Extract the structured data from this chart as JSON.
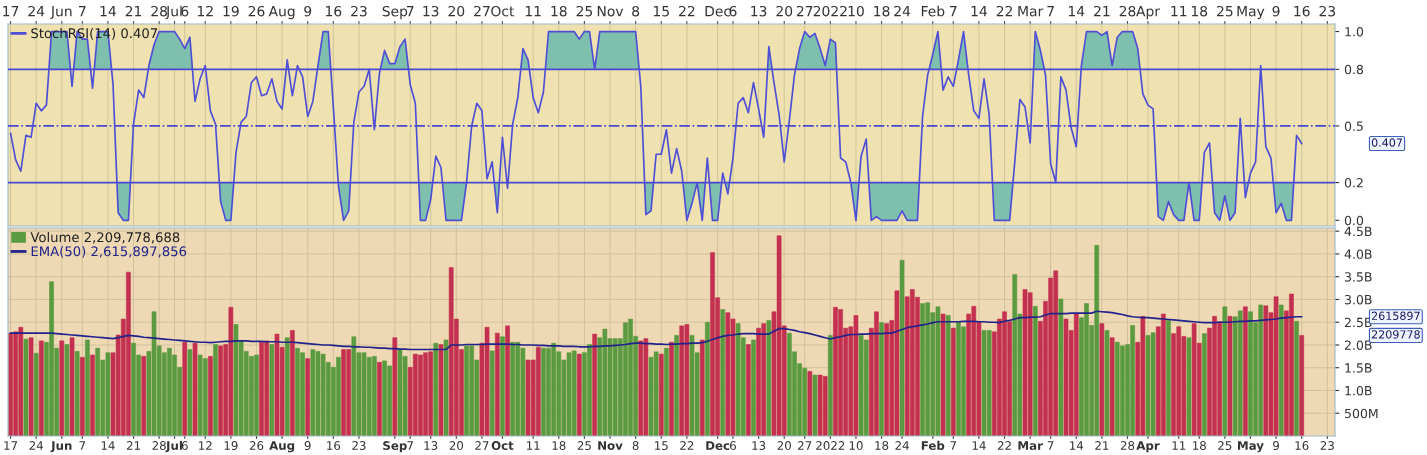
{
  "chart_data": [
    {
      "type": "line",
      "categories": [
        "17",
        null,
        null,
        null,
        null,
        "24",
        null,
        null,
        null,
        null,
        "Jun",
        null,
        null,
        null,
        "7",
        null,
        null,
        null,
        null,
        "14",
        null,
        null,
        null,
        null,
        "21",
        null,
        null,
        null,
        null,
        "28",
        null,
        null,
        "Jul",
        null,
        "6",
        null,
        null,
        null,
        "12",
        null,
        null,
        null,
        null,
        "19",
        null,
        null,
        null,
        null,
        "26",
        null,
        null,
        null,
        null,
        "Aug",
        null,
        null,
        null,
        null,
        "9",
        null,
        null,
        null,
        null,
        "16",
        null,
        null,
        null,
        null,
        "23",
        null,
        null,
        null,
        null,
        null,
        null,
        "Sep",
        null,
        null,
        "7",
        null,
        null,
        null,
        "13",
        null,
        null,
        null,
        null,
        "20",
        null,
        null,
        null,
        null,
        "27",
        null,
        null,
        null,
        "Oct",
        null,
        null,
        null,
        null,
        null,
        "11",
        null,
        null,
        null,
        null,
        "18",
        null,
        null,
        null,
        null,
        "25",
        null,
        null,
        null,
        null,
        "Nov",
        null,
        null,
        null,
        null,
        "8",
        null,
        null,
        null,
        null,
        "15",
        null,
        null,
        null,
        null,
        "22",
        null,
        null,
        null,
        null,
        null,
        "Dec",
        null,
        null,
        "6",
        null,
        null,
        null,
        null,
        "13",
        null,
        null,
        null,
        null,
        "20",
        null,
        null,
        null,
        "27",
        null,
        null,
        null,
        null,
        "2022",
        null,
        null,
        null,
        null,
        "10",
        null,
        null,
        null,
        null,
        "18",
        null,
        null,
        null,
        "24",
        null,
        null,
        null,
        null,
        null,
        "Feb",
        null,
        null,
        null,
        "7",
        null,
        null,
        null,
        null,
        "14",
        null,
        null,
        null,
        null,
        "22",
        null,
        null,
        null,
        null,
        "Mar",
        null,
        null,
        null,
        "7",
        null,
        null,
        null,
        null,
        "14",
        null,
        null,
        null,
        null,
        "21",
        null,
        null,
        null,
        null,
        "28",
        null,
        null,
        null,
        "Apr",
        null,
        null,
        null,
        null,
        null,
        "11",
        null,
        null,
        null,
        "18",
        null,
        null,
        null,
        null,
        "25",
        null,
        null,
        null,
        null,
        "May",
        null,
        null,
        null,
        null,
        "9",
        null,
        null,
        null,
        null,
        "16",
        null,
        null,
        null,
        null,
        "23",
        null
      ],
      "series": [
        {
          "name": "StochRSI(14) 0.407",
          "color": "#4f4fd6",
          "values": [
            0.46,
            0.32,
            0.26,
            0.45,
            0.44,
            0.62,
            0.58,
            0.61,
            1.0,
            1.0,
            1.0,
            1.0,
            0.71,
            1.0,
            0.96,
            0.96,
            0.7,
            1.0,
            1.0,
            1.0,
            0.72,
            0.04,
            0.0,
            0.0,
            0.51,
            0.69,
            0.65,
            0.82,
            0.93,
            1.0,
            1.0,
            1.0,
            1.0,
            0.96,
            0.91,
            0.97,
            0.63,
            0.75,
            0.82,
            0.58,
            0.51,
            0.1,
            0.0,
            0.0,
            0.36,
            0.52,
            0.55,
            0.73,
            0.76,
            0.66,
            0.67,
            0.75,
            0.63,
            0.59,
            0.85,
            0.66,
            0.82,
            0.76,
            0.55,
            0.63,
            0.82,
            1.0,
            1.0,
            0.6,
            0.18,
            0.0,
            0.05,
            0.52,
            0.68,
            0.71,
            0.8,
            0.48,
            0.78,
            0.9,
            0.83,
            0.83,
            0.92,
            0.96,
            0.72,
            0.62,
            0.0,
            0.0,
            0.11,
            0.34,
            0.28,
            0.0,
            0.0,
            0.0,
            0.0,
            0.2,
            0.5,
            0.62,
            0.58,
            0.22,
            0.31,
            0.04,
            0.44,
            0.17,
            0.51,
            0.65,
            0.91,
            0.85,
            0.65,
            0.57,
            0.68,
            1.0,
            1.0,
            1.0,
            1.0,
            1.0,
            1.0,
            0.96,
            1.0,
            1.0,
            0.8,
            1.0,
            1.0,
            1.0,
            1.0,
            1.0,
            1.0,
            1.0,
            1.0,
            0.71,
            0.03,
            0.05,
            0.35,
            0.35,
            0.48,
            0.25,
            0.38,
            0.26,
            0.0,
            0.09,
            0.2,
            0.0,
            0.33,
            0.0,
            0.0,
            0.25,
            0.14,
            0.33,
            0.62,
            0.65,
            0.57,
            0.73,
            0.59,
            0.44,
            0.92,
            0.73,
            0.56,
            0.31,
            0.53,
            0.77,
            0.91,
            1.0,
            0.97,
            0.99,
            0.91,
            0.82,
            0.96,
            0.94,
            0.33,
            0.31,
            0.2,
            0.0,
            0.34,
            0.43,
            0.0,
            0.02,
            0.0,
            0.0,
            0.0,
            0.0,
            0.05,
            0.0,
            0.0,
            0.0,
            0.55,
            0.77,
            0.88,
            1.0,
            0.69,
            0.76,
            0.71,
            0.85,
            1.0,
            0.77,
            0.58,
            0.54,
            0.75,
            0.56,
            0.0,
            0.0,
            0.0,
            0.0,
            0.31,
            0.64,
            0.6,
            0.41,
            1.0,
            0.9,
            0.77,
            0.3,
            0.2,
            0.76,
            0.69,
            0.49,
            0.39,
            0.82,
            1.0,
            1.0,
            1.0,
            0.98,
            1.0,
            0.82,
            0.97,
            1.0,
            1.0,
            1.0,
            0.91,
            0.67,
            0.61,
            0.59,
            0.02,
            0.0,
            0.1,
            0.03,
            0.0,
            0.0,
            0.2,
            0.0,
            0.0,
            0.36,
            0.41,
            0.04,
            0.0,
            0.13,
            0.0,
            0.04,
            0.54,
            0.12,
            0.25,
            0.31,
            0.82,
            0.39,
            0.33,
            0.04,
            0.09,
            0.0,
            0.0,
            0.45,
            0.407,
            null,
            null,
            null,
            null,
            null,
            null
          ]
        }
      ],
      "ylim": [
        -0.03,
        1.04
      ],
      "yticks": [
        {
          "value": 0,
          "label": "0.0"
        },
        0.2,
        0.5,
        0.8,
        {
          "value": 1,
          "label": "1.0"
        }
      ],
      "ref_lines": [
        {
          "axis": "y",
          "value": 0.8,
          "label": null,
          "color": "#4848d0",
          "line_style": "solid"
        },
        {
          "axis": "y",
          "value": 0.5,
          "label": null,
          "color": "#4848d0",
          "line_style": "dashed"
        },
        {
          "axis": "y",
          "value": 0.2,
          "label": null,
          "color": "#4848d0",
          "line_style": "solid"
        }
      ],
      "annotations": [
        "0.407"
      ],
      "grid": "x",
      "legend": "top left"
    },
    {
      "type": "bar",
      "categories": [
        "17",
        null,
        null,
        null,
        null,
        "24",
        null,
        null,
        null,
        null,
        "Jun",
        null,
        null,
        null,
        "7",
        null,
        null,
        null,
        null,
        "14",
        null,
        null,
        null,
        null,
        "21",
        null,
        null,
        null,
        null,
        "28",
        null,
        null,
        "Jul",
        null,
        "6",
        null,
        null,
        null,
        "12",
        null,
        null,
        null,
        null,
        "19",
        null,
        null,
        null,
        null,
        "26",
        null,
        null,
        null,
        null,
        "Aug",
        null,
        null,
        null,
        null,
        "9",
        null,
        null,
        null,
        null,
        "16",
        null,
        null,
        null,
        null,
        "23",
        null,
        null,
        null,
        null,
        null,
        null,
        "Sep",
        null,
        null,
        "7",
        null,
        null,
        null,
        "13",
        null,
        null,
        null,
        null,
        "20",
        null,
        null,
        null,
        null,
        "27",
        null,
        null,
        null,
        "Oct",
        null,
        null,
        null,
        null,
        null,
        "11",
        null,
        null,
        null,
        null,
        "18",
        null,
        null,
        null,
        null,
        "25",
        null,
        null,
        null,
        null,
        "Nov",
        null,
        null,
        null,
        null,
        "8",
        null,
        null,
        null,
        null,
        "15",
        null,
        null,
        null,
        null,
        "22",
        null,
        null,
        null,
        null,
        null,
        "Dec",
        null,
        null,
        "6",
        null,
        null,
        null,
        null,
        "13",
        null,
        null,
        null,
        null,
        "20",
        null,
        null,
        null,
        "27",
        null,
        null,
        null,
        null,
        "2022",
        null,
        null,
        null,
        null,
        "10",
        null,
        null,
        null,
        null,
        "18",
        null,
        null,
        null,
        "24",
        null,
        null,
        null,
        null,
        null,
        "Feb",
        null,
        null,
        null,
        "7",
        null,
        null,
        null,
        null,
        "14",
        null,
        null,
        null,
        null,
        "22",
        null,
        null,
        null,
        null,
        "Mar",
        null,
        null,
        null,
        "7",
        null,
        null,
        null,
        null,
        "14",
        null,
        null,
        null,
        null,
        "21",
        null,
        null,
        null,
        null,
        "28",
        null,
        null,
        null,
        "Apr",
        null,
        null,
        null,
        null,
        null,
        "11",
        null,
        null,
        null,
        "18",
        null,
        null,
        null,
        null,
        "25",
        null,
        null,
        null,
        null,
        "May",
        null,
        null,
        null,
        null,
        "9",
        null,
        null,
        null,
        null,
        "16",
        null,
        null,
        null,
        null,
        "23",
        null
      ],
      "series": [
        {
          "name": "Volume 2,209,778,688",
          "type": "bar",
          "color": "#5a9a40",
          "values": [
            2260000000.0,
            2290000000.0,
            2390000000.0,
            2130000000.0,
            2160000000.0,
            1820000000.0,
            2090000000.0,
            2060000000.0,
            3390000000.0,
            1930000000.0,
            2090000000.0,
            2010000000.0,
            2160000000.0,
            1860000000.0,
            1730000000.0,
            2110000000.0,
            1780000000.0,
            1930000000.0,
            1670000000.0,
            1830000000.0,
            1830000000.0,
            2220000000.0,
            2570000000.0,
            3600000000.0,
            2040000000.0,
            1780000000.0,
            1750000000.0,
            1860000000.0,
            2730000000.0,
            1980000000.0,
            1830000000.0,
            1930000000.0,
            1780000000.0,
            1510000000.0,
            2060000000.0,
            1900000000.0,
            2040000000.0,
            1780000000.0,
            1700000000.0,
            1750000000.0,
            2010000000.0,
            1980000000.0,
            2010000000.0,
            2830000000.0,
            2450000000.0,
            2090000000.0,
            1860000000.0,
            1750000000.0,
            1780000000.0,
            2060000000.0,
            2090000000.0,
            2010000000.0,
            2240000000.0,
            1950000000.0,
            2160000000.0,
            2320000000.0,
            1930000000.0,
            1830000000.0,
            1700000000.0,
            1900000000.0,
            1860000000.0,
            1800000000.0,
            1620000000.0,
            1510000000.0,
            1730000000.0,
            1900000000.0,
            1900000000.0,
            2180000000.0,
            1830000000.0,
            1830000000.0,
            1730000000.0,
            1750000000.0,
            1620000000.0,
            1650000000.0,
            1540000000.0,
            2160000000.0,
            1900000000.0,
            1750000000.0,
            1510000000.0,
            1800000000.0,
            1780000000.0,
            1830000000.0,
            1850000000.0,
            2040000000.0,
            2010000000.0,
            2110000000.0,
            3700000000.0,
            2570000000.0,
            1900000000.0,
            1980000000.0,
            1980000000.0,
            1670000000.0,
            2040000000.0,
            2390000000.0,
            1870000000.0,
            2260000000.0,
            2180000000.0,
            2420000000.0,
            2060000000.0,
            2060000000.0,
            1930000000.0,
            1670000000.0,
            1670000000.0,
            1950000000.0,
            1930000000.0,
            1930000000.0,
            2040000000.0,
            1850000000.0,
            1670000000.0,
            1830000000.0,
            1870000000.0,
            1800000000.0,
            1830000000.0,
            2010000000.0,
            2240000000.0,
            2160000000.0,
            2350000000.0,
            2140000000.0,
            2140000000.0,
            2140000000.0,
            2490000000.0,
            2570000000.0,
            2190000000.0,
            2090000000.0,
            2140000000.0,
            1730000000.0,
            1850000000.0,
            1800000000.0,
            1930000000.0,
            2060000000.0,
            2210000000.0,
            2420000000.0,
            2450000000.0,
            2210000000.0,
            1830000000.0,
            2110000000.0,
            2500000000.0,
            4030000000.0,
            3040000000.0,
            2780000000.0,
            2710000000.0,
            2570000000.0,
            2470000000.0,
            2160000000.0,
            2010000000.0,
            2110000000.0,
            2370000000.0,
            2470000000.0,
            2540000000.0,
            2730000000.0,
            4400000000.0,
            2420000000.0,
            2260000000.0,
            1850000000.0,
            1590000000.0,
            1490000000.0,
            1420000000.0,
            1340000000.0,
            1340000000.0,
            1310000000.0,
            2210000000.0,
            2830000000.0,
            2780000000.0,
            2370000000.0,
            2400000000.0,
            2650000000.0,
            2210000000.0,
            2110000000.0,
            2370000000.0,
            2730000000.0,
            2490000000.0,
            2470000000.0,
            2540000000.0,
            3190000000.0,
            3860000000.0,
            3060000000.0,
            3220000000.0,
            3050000000.0,
            2910000000.0,
            2930000000.0,
            2710000000.0,
            2840000000.0,
            2680000000.0,
            2650000000.0,
            2370000000.0,
            2510000000.0,
            2400000000.0,
            2680000000.0,
            2850000000.0,
            2510000000.0,
            2320000000.0,
            2320000000.0,
            2290000000.0,
            2570000000.0,
            2730000000.0,
            2510000000.0,
            3550000000.0,
            2680000000.0,
            3220000000.0,
            3150000000.0,
            2850000000.0,
            2520000000.0,
            2960000000.0,
            3470000000.0,
            3630000000.0,
            3010000000.0,
            2570000000.0,
            2320000000.0,
            2690000000.0,
            2600000000.0,
            2910000000.0,
            2430000000.0,
            4190000000.0,
            2470000000.0,
            2320000000.0,
            2160000000.0,
            2060000000.0,
            1980000000.0,
            2010000000.0,
            2430000000.0,
            2060000000.0,
            2630000000.0,
            2210000000.0,
            2270000000.0,
            2400000000.0,
            2680000000.0,
            2540000000.0,
            2250000000.0,
            2400000000.0,
            2190000000.0,
            2160000000.0,
            2470000000.0,
            2040000000.0,
            2250000000.0,
            2370000000.0,
            2630000000.0,
            2510000000.0,
            2840000000.0,
            2630000000.0,
            2620000000.0,
            2750000000.0,
            2840000000.0,
            2730000000.0,
            2490000000.0,
            2880000000.0,
            2860000000.0,
            2710000000.0,
            3060000000.0,
            2880000000.0,
            2750000000.0,
            3120000000.0,
            2520000000.0,
            2210000000.0,
            null,
            null,
            null,
            null,
            null,
            null
          ],
          "colors": [
            "#c4304f",
            "#c4304f",
            "#c4304f",
            "#5a9a40",
            "#c4304f",
            "#5a9a40",
            "#c4304f",
            "#5a9a40",
            "#5a9a40",
            "#5a9a40",
            "#c4304f",
            "#5a9a40",
            "#c4304f",
            "#5a9a40",
            "#c4304f",
            "#5a9a40",
            "#c4304f",
            "#5a9a40",
            "#5a9a40",
            "#5a9a40",
            "#c4304f",
            "#c4304f",
            "#c4304f",
            "#c4304f",
            "#5a9a40",
            "#5a9a40",
            "#c4304f",
            "#5a9a40",
            "#5a9a40",
            "#5a9a40",
            "#5a9a40",
            "#5a9a40",
            "#5a9a40",
            "#5a9a40",
            "#c4304f",
            "#5a9a40",
            "#c4304f",
            "#5a9a40",
            "#5a9a40",
            "#c4304f",
            "#5a9a40",
            "#c4304f",
            "#c4304f",
            "#c4304f",
            "#5a9a40",
            "#5a9a40",
            "#5a9a40",
            "#5a9a40",
            "#5a9a40",
            "#c4304f",
            "#c4304f",
            "#5a9a40",
            "#c4304f",
            "#c4304f",
            "#5a9a40",
            "#c4304f",
            "#5a9a40",
            "#5a9a40",
            "#c4304f",
            "#5a9a40",
            "#5a9a40",
            "#5a9a40",
            "#5a9a40",
            "#5a9a40",
            "#5a9a40",
            "#c4304f",
            "#c4304f",
            "#5a9a40",
            "#5a9a40",
            "#5a9a40",
            "#5a9a40",
            "#5a9a40",
            "#c4304f",
            "#5a9a40",
            "#5a9a40",
            "#c4304f",
            "#5a9a40",
            "#5a9a40",
            "#c4304f",
            "#c4304f",
            "#c4304f",
            "#c4304f",
            "#c4304f",
            "#5a9a40",
            "#c4304f",
            "#5a9a40",
            "#c4304f",
            "#c4304f",
            "#c4304f",
            "#5a9a40",
            "#5a9a40",
            "#5a9a40",
            "#c4304f",
            "#c4304f",
            "#5a9a40",
            "#c4304f",
            "#5a9a40",
            "#c4304f",
            "#5a9a40",
            "#5a9a40",
            "#5a9a40",
            "#c4304f",
            "#c4304f",
            "#c4304f",
            "#5a9a40",
            "#5a9a40",
            "#5a9a40",
            "#5a9a40",
            "#5a9a40",
            "#5a9a40",
            "#5a9a40",
            "#c4304f",
            "#5a9a40",
            "#5a9a40",
            "#c4304f",
            "#5a9a40",
            "#5a9a40",
            "#5a9a40",
            "#5a9a40",
            "#5a9a40",
            "#5a9a40",
            "#5a9a40",
            "#5a9a40",
            "#c4304f",
            "#c4304f",
            "#5a9a40",
            "#5a9a40",
            "#c4304f",
            "#5a9a40",
            "#c4304f",
            "#5a9a40",
            "#c4304f",
            "#c4304f",
            "#5a9a40",
            "#5a9a40",
            "#c4304f",
            "#5a9a40",
            "#c4304f",
            "#c4304f",
            "#5a9a40",
            "#c4304f",
            "#c4304f",
            "#5a9a40",
            "#5a9a40",
            "#c4304f",
            "#5a9a40",
            "#c4304f",
            "#c4304f",
            "#5a9a40",
            "#c4304f",
            "#c4304f",
            "#c4304f",
            "#5a9a40",
            "#5a9a40",
            "#5a9a40",
            "#5a9a40",
            "#c4304f",
            "#5a9a40",
            "#c4304f",
            "#c4304f",
            "#5a9a40",
            "#c4304f",
            "#c4304f",
            "#c4304f",
            "#c4304f",
            "#c4304f",
            "#5a9a40",
            "#5a9a40",
            "#c4304f",
            "#c4304f",
            "#5a9a40",
            "#c4304f",
            "#c4304f",
            "#c4304f",
            "#5a9a40",
            "#c4304f",
            "#c4304f",
            "#c4304f",
            "#5a9a40",
            "#5a9a40",
            "#5a9a40",
            "#5a9a40",
            "#c4304f",
            "#5a9a40",
            "#c4304f",
            "#5a9a40",
            "#5a9a40",
            "#c4304f",
            "#c4304f",
            "#c4304f",
            "#5a9a40",
            "#5a9a40",
            "#c4304f",
            "#c4304f",
            "#c4304f",
            "#c4304f",
            "#5a9a40",
            "#5a9a40",
            "#c4304f",
            "#c4304f",
            "#5a9a40",
            "#c4304f",
            "#c4304f",
            "#c4304f",
            "#c4304f",
            "#5a9a40",
            "#c4304f",
            "#c4304f",
            "#c4304f",
            "#5a9a40",
            "#5a9a40",
            "#5a9a40",
            "#5a9a40",
            "#c4304f",
            "#5a9a40",
            "#c4304f",
            "#5a9a40",
            "#5a9a40",
            "#5a9a40",
            "#5a9a40",
            "#c4304f",
            "#c4304f",
            "#5a9a40",
            "#5a9a40",
            "#c4304f",
            "#c4304f",
            "#5a9a40",
            "#c4304f",
            "#c4304f",
            "#c4304f",
            "#5a9a40",
            "#c4304f",
            "#c4304f",
            "#5a9a40",
            "#c4304f",
            "#c4304f",
            "#c4304f",
            "#5a9a40",
            "#c4304f",
            "#5a9a40",
            "#5a9a40",
            "#c4304f",
            "#5a9a40",
            "#5a9a40",
            "#5a9a40",
            "#c4304f",
            "#c4304f",
            "#c4304f",
            "#5a9a40",
            "#c4304f",
            "#c4304f",
            "#5a9a40",
            "#c4304f",
            null,
            null,
            null,
            null,
            null,
            null
          ]
        },
        {
          "name": "EMA(50) 2,615,897,856",
          "type": "line",
          "color": "#22228c",
          "values": [
            2260000000.0,
            2260000000.0,
            2260000000.0,
            2260000000.0,
            2260000000.0,
            2260000000.0,
            2260000000.0,
            2260000000.0,
            2260000000.0,
            2250000000.0,
            2240000000.0,
            2230000000.0,
            2220000000.0,
            2210000000.0,
            2200000000.0,
            2190000000.0,
            2180000000.0,
            2170000000.0,
            2160000000.0,
            2150000000.0,
            2140000000.0,
            2160000000.0,
            2190000000.0,
            2210000000.0,
            2200000000.0,
            2190000000.0,
            2170000000.0,
            2160000000.0,
            2150000000.0,
            2140000000.0,
            2130000000.0,
            2120000000.0,
            2110000000.0,
            2100000000.0,
            2090000000.0,
            2080000000.0,
            2070000000.0,
            2060000000.0,
            2060000000.0,
            2050000000.0,
            2060000000.0,
            2070000000.0,
            2080000000.0,
            2080000000.0,
            2090000000.0,
            2090000000.0,
            2090000000.0,
            2080000000.0,
            2080000000.0,
            2080000000.0,
            2070000000.0,
            2070000000.0,
            2070000000.0,
            2060000000.0,
            2060000000.0,
            2060000000.0,
            2050000000.0,
            2040000000.0,
            2030000000.0,
            2020000000.0,
            2010000000.0,
            2000000000.0,
            2000000000.0,
            1990000000.0,
            1980000000.0,
            1970000000.0,
            1970000000.0,
            1960000000.0,
            1960000000.0,
            1950000000.0,
            1950000000.0,
            1940000000.0,
            1930000000.0,
            1930000000.0,
            1920000000.0,
            1920000000.0,
            1910000000.0,
            1910000000.0,
            1900000000.0,
            1900000000.0,
            1900000000.0,
            1900000000.0,
            1900000000.0,
            1900000000.0,
            1900000000.0,
            1900000000.0,
            2000000000.0,
            2000000000.0,
            2000000000.0,
            2010000000.0,
            2010000000.0,
            2010000000.0,
            2010000000.0,
            2020000000.0,
            2020000000.0,
            2020000000.0,
            2020000000.0,
            2020000000.0,
            2010000000.0,
            2010000000.0,
            2000000000.0,
            2000000000.0,
            2000000000.0,
            1990000000.0,
            1990000000.0,
            1980000000.0,
            1980000000.0,
            1980000000.0,
            1970000000.0,
            1970000000.0,
            1970000000.0,
            1960000000.0,
            1960000000.0,
            1960000000.0,
            1970000000.0,
            1970000000.0,
            1980000000.0,
            1980000000.0,
            1990000000.0,
            2000000000.0,
            2010000000.0,
            2030000000.0,
            2040000000.0,
            2040000000.0,
            2030000000.0,
            2030000000.0,
            2020000000.0,
            2020000000.0,
            2010000000.0,
            2020000000.0,
            2020000000.0,
            2030000000.0,
            2030000000.0,
            2040000000.0,
            2040000000.0,
            2050000000.0,
            2080000000.0,
            2120000000.0,
            2160000000.0,
            2190000000.0,
            2210000000.0,
            2220000000.0,
            2240000000.0,
            2250000000.0,
            2250000000.0,
            2250000000.0,
            2240000000.0,
            2240000000.0,
            2240000000.0,
            2300000000.0,
            2360000000.0,
            2360000000.0,
            2340000000.0,
            2320000000.0,
            2290000000.0,
            2270000000.0,
            2250000000.0,
            2220000000.0,
            2190000000.0,
            2160000000.0,
            2130000000.0,
            2160000000.0,
            2180000000.0,
            2210000000.0,
            2230000000.0,
            2230000000.0,
            2240000000.0,
            2240000000.0,
            2250000000.0,
            2250000000.0,
            2250000000.0,
            2260000000.0,
            2260000000.0,
            2300000000.0,
            2340000000.0,
            2380000000.0,
            2400000000.0,
            2420000000.0,
            2440000000.0,
            2460000000.0,
            2490000000.0,
            2510000000.0,
            2510000000.0,
            2510000000.0,
            2510000000.0,
            2510000000.0,
            2520000000.0,
            2520000000.0,
            2520000000.0,
            2510000000.0,
            2510000000.0,
            2500000000.0,
            2500000000.0,
            2490000000.0,
            2520000000.0,
            2540000000.0,
            2570000000.0,
            2600000000.0,
            2600000000.0,
            2610000000.0,
            2610000000.0,
            2620000000.0,
            2660000000.0,
            2690000000.0,
            2690000000.0,
            2690000000.0,
            2690000000.0,
            2700000000.0,
            2700000000.0,
            2700000000.0,
            2700000000.0,
            2700000000.0,
            2740000000.0,
            2730000000.0,
            2720000000.0,
            2710000000.0,
            2690000000.0,
            2670000000.0,
            2640000000.0,
            2620000000.0,
            2610000000.0,
            2600000000.0,
            2600000000.0,
            2590000000.0,
            2580000000.0,
            2570000000.0,
            2560000000.0,
            2550000000.0,
            2540000000.0,
            2530000000.0,
            2520000000.0,
            2510000000.0,
            2500000000.0,
            2490000000.0,
            2490000000.0,
            2490000000.0,
            2500000000.0,
            2500000000.0,
            2500000000.0,
            2510000000.0,
            2520000000.0,
            2520000000.0,
            2530000000.0,
            2530000000.0,
            2540000000.0,
            2550000000.0,
            2560000000.0,
            2570000000.0,
            2590000000.0,
            2600000000.0,
            2610000000.0,
            2620000000.0,
            2620000000.0,
            null,
            null,
            null,
            null,
            null,
            null
          ]
        }
      ],
      "ylim": [
        0,
        4570000000.0
      ],
      "yticks": [
        {
          "value": 500000000.0,
          "label": "500M"
        },
        {
          "value": 1000000000.0,
          "label": "1.0B"
        },
        {
          "value": 1500000000.0,
          "label": "1.5B"
        },
        {
          "value": 2000000000.0,
          "label": "2.0B"
        },
        {
          "value": 2500000000.0,
          "label": "2.5B"
        },
        {
          "value": 3000000000.0,
          "label": "3.0B"
        },
        {
          "value": 3500000000.0,
          "label": "3.5B"
        },
        {
          "value": 4000000000.0,
          "label": "4.0B"
        },
        {
          "value": 4500000000.0,
          "label": "4.5B"
        }
      ],
      "annotations": [
        "2209778",
        "2615897"
      ],
      "grid": true,
      "legend": "top left"
    }
  ]
}
